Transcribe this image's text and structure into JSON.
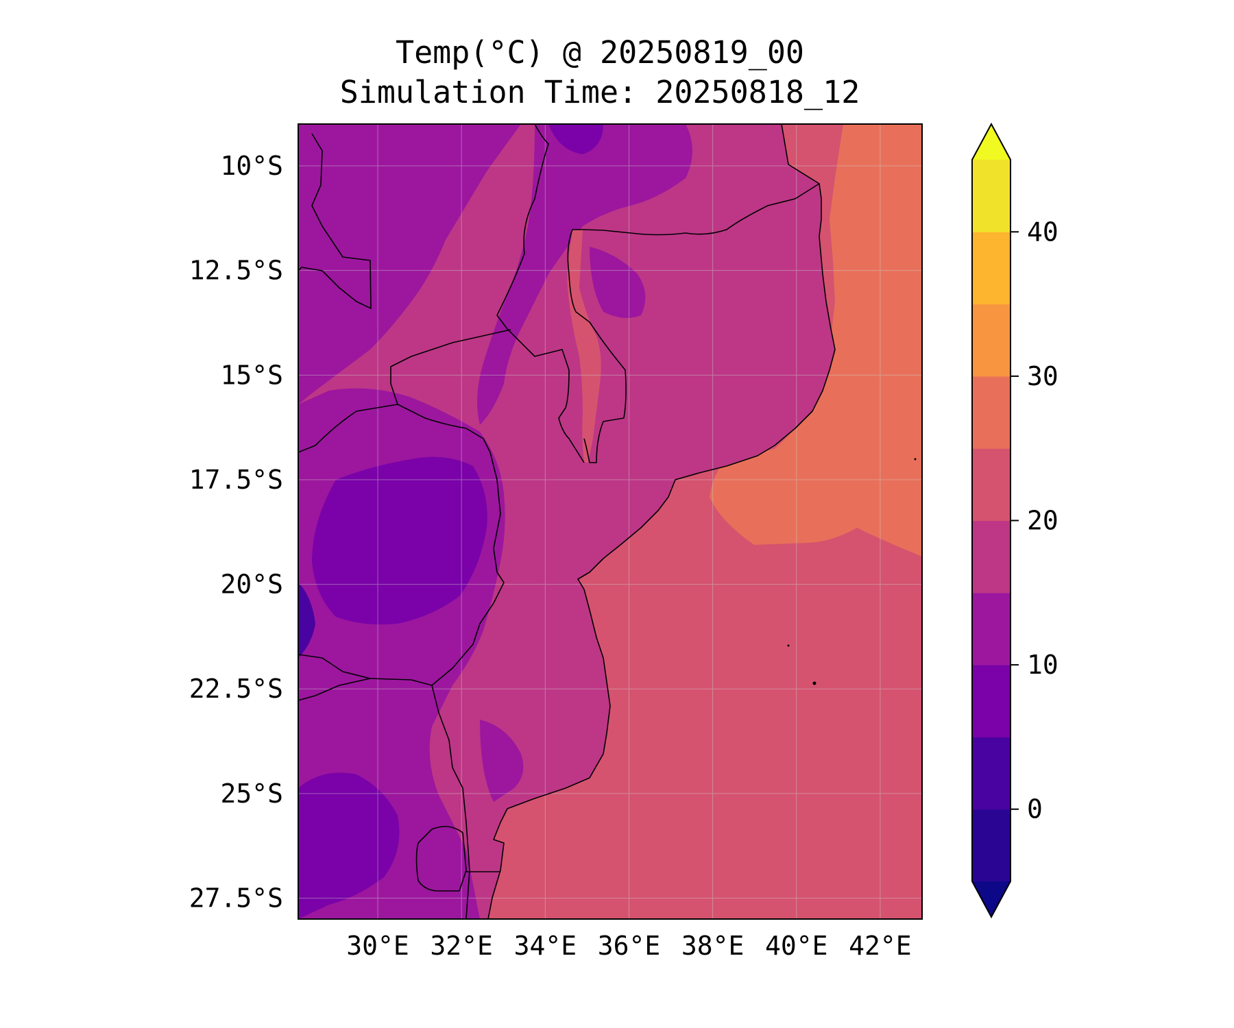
{
  "title": {
    "line1": "Temp(°C) @ 20250819_00",
    "line2": "Simulation Time: 20250818_12"
  },
  "map_extent": {
    "lon": [
      28.1,
      43.0
    ],
    "lat": [
      -28.0,
      -9.0
    ]
  },
  "lat_ticks": [
    {
      "value": -10.0,
      "label": "10°S"
    },
    {
      "value": -12.5,
      "label": "12.5°S"
    },
    {
      "value": -15.0,
      "label": "15°S"
    },
    {
      "value": -17.5,
      "label": "17.5°S"
    },
    {
      "value": -20.0,
      "label": "20°S"
    },
    {
      "value": -22.5,
      "label": "22.5°S"
    },
    {
      "value": -25.0,
      "label": "25°S"
    },
    {
      "value": -27.5,
      "label": "27.5°S"
    }
  ],
  "lon_ticks": [
    {
      "value": 30,
      "label": "30°E"
    },
    {
      "value": 32,
      "label": "32°E"
    },
    {
      "value": 34,
      "label": "34°E"
    },
    {
      "value": 36,
      "label": "36°E"
    },
    {
      "value": 38,
      "label": "38°E"
    },
    {
      "value": 40,
      "label": "40°E"
    },
    {
      "value": 42,
      "label": "42°E"
    }
  ],
  "colorbar": {
    "colormap": "plasma",
    "min": -5,
    "max": 45,
    "step": 5,
    "extend": "both",
    "under_color": "#0d0887",
    "over_color": "#f0f921",
    "bins": [
      {
        "from": -5,
        "to": 0,
        "color": "#2a0593"
      },
      {
        "from": 0,
        "to": 5,
        "color": "#4903a0"
      },
      {
        "from": 5,
        "to": 10,
        "color": "#7a02a8"
      },
      {
        "from": 10,
        "to": 15,
        "color": "#9c179e"
      },
      {
        "from": 15,
        "to": 20,
        "color": "#bd3786"
      },
      {
        "from": 20,
        "to": 25,
        "color": "#d5536f"
      },
      {
        "from": 25,
        "to": 30,
        "color": "#e8705a"
      },
      {
        "from": 30,
        "to": 35,
        "color": "#f89540"
      },
      {
        "from": 35,
        "to": 40,
        "color": "#fdb42f"
      },
      {
        "from": 40,
        "to": 45,
        "color": "#f0e22a"
      }
    ],
    "ticks": [
      {
        "value": 0,
        "label": "0"
      },
      {
        "value": 10,
        "label": "10"
      },
      {
        "value": 20,
        "label": "20"
      },
      {
        "value": 30,
        "label": "30"
      },
      {
        "value": 40,
        "label": "40"
      }
    ]
  },
  "field_colors": {
    "ocean": "#d5536f",
    "ocean_warm": "#e8705a",
    "land_main": "#bd3786",
    "land_cool": "#9c179e",
    "land_cold": "#7a02a8",
    "land_coldest": "#4903a0"
  }
}
